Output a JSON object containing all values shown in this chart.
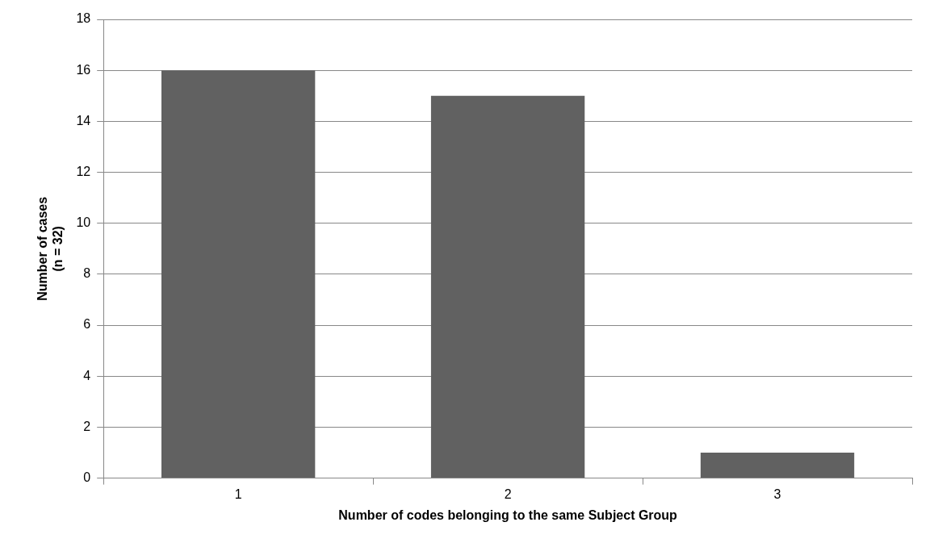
{
  "chart_data": {
    "type": "bar",
    "xlabel": "Number of codes belonging to the same Subject Group",
    "ylabel": "Number of cases\n(n = 32)",
    "categories": [
      "1",
      "2",
      "3"
    ],
    "values": [
      16,
      15,
      1
    ],
    "color": "#616161",
    "ylim": [
      0,
      18
    ],
    "yticks": [
      0,
      2,
      4,
      6,
      8,
      10,
      12,
      14,
      16,
      18
    ],
    "grid": "y",
    "legend": false
  }
}
